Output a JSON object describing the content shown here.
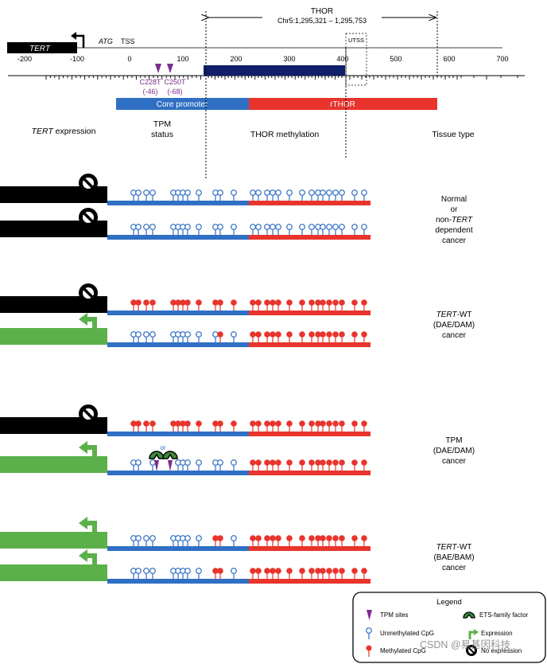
{
  "thor": {
    "title": "THOR",
    "coords": "Chr5:1,295,321 – 1,295,753"
  },
  "gene": {
    "name": "TERT",
    "atg": "ATG",
    "tss": "TSS",
    "utss": "UTSS"
  },
  "ruler_ticks": [
    "-200",
    "-100",
    "0",
    "100",
    "200",
    "300",
    "400",
    "500",
    "600",
    "700"
  ],
  "tpm_sites": {
    "c228": "C228T",
    "c228_pos": "(-46)",
    "c250": "C250T",
    "c250_pos": "(-68)"
  },
  "regions": {
    "core": "Core promoter",
    "rthor": "rTHOR"
  },
  "columns": {
    "tert_prefix": "TERT",
    "tert_suffix": " expression",
    "tpm_line1": "TPM",
    "tpm_line2": "status",
    "thor_meth": "THOR methylation",
    "tissue": "Tissue type"
  },
  "groups": [
    {
      "lines": [
        "Normal",
        "or",
        "non-TERT",
        "dependent",
        "cancer"
      ]
    },
    {
      "lines": [
        "TERT-WT",
        "(DAE/DAM)",
        "cancer"
      ]
    },
    {
      "lines": [
        "TPM",
        "(DAE/DAM)",
        "cancer"
      ]
    },
    {
      "lines": [
        "TERT-WT",
        "(BAE/BAM)",
        "cancer"
      ]
    }
  ],
  "ets_or": "or",
  "legend": {
    "title": "Legend",
    "tpm_sites": "TPM sites",
    "ets": "ETS-family factor",
    "unmethylated": "Unmethylated CpG",
    "expression": "Expression",
    "methylated": "Methylated CpG",
    "no_expression": "No expression"
  },
  "watermark": "CSDN @易基因科技",
  "colors": {
    "blue": "#2f6fc4",
    "red": "#e8342c",
    "navy": "#0f1f6b",
    "green": "#5bb04a",
    "ets_green": "#3d8c3a",
    "purple": "#7b2e8e",
    "black": "#000000"
  }
}
